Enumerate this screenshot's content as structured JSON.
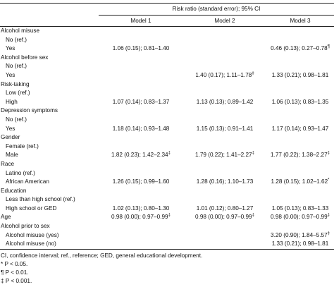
{
  "header": {
    "span_title": "Risk ratio (standard error); 95% CI",
    "columns": [
      "Model 1",
      "Model 2",
      "Model 3"
    ]
  },
  "table": {
    "rows": [
      {
        "label": "Alcohol misuse",
        "indent": false,
        "cells": [
          null,
          null,
          null
        ]
      },
      {
        "label": "No (ref.)",
        "indent": true,
        "cells": [
          null,
          null,
          null
        ]
      },
      {
        "label": "Yes",
        "indent": true,
        "cells": [
          {
            "text": "1.06 (0.15); 0.81–1.40"
          },
          null,
          {
            "text": "0.46 (0.13); 0.27–0.78",
            "sig": "¶"
          }
        ]
      },
      {
        "label": "Alcohol before sex",
        "indent": false,
        "cells": [
          null,
          null,
          null
        ]
      },
      {
        "label": "No (ref.)",
        "indent": true,
        "cells": [
          null,
          null,
          null
        ]
      },
      {
        "label": "Yes",
        "indent": true,
        "cells": [
          null,
          {
            "text": "1.40 (0.17); 1.11–1.78",
            "sig": "‡"
          },
          {
            "text": "1.33 (0.21); 0.98–1.81"
          }
        ]
      },
      {
        "label": "Risk-taking",
        "indent": false,
        "cells": [
          null,
          null,
          null
        ]
      },
      {
        "label": "Low (ref.)",
        "indent": true,
        "cells": [
          null,
          null,
          null
        ]
      },
      {
        "label": "High",
        "indent": true,
        "cells": [
          {
            "text": "1.07 (0.14); 0.83–1.37"
          },
          {
            "text": "1.13 (0.13); 0.89–1.42"
          },
          {
            "text": "1.06 (0.13); 0.83–1.35"
          }
        ]
      },
      {
        "label": "Depression symptoms",
        "indent": false,
        "cells": [
          null,
          null,
          null
        ]
      },
      {
        "label": "No (ref.)",
        "indent": true,
        "cells": [
          null,
          null,
          null
        ]
      },
      {
        "label": "Yes",
        "indent": true,
        "cells": [
          {
            "text": "1.18 (0.14); 0.93–1.48"
          },
          {
            "text": "1.15 (0.13); 0.91–1.41"
          },
          {
            "text": "1.17 (0.14); 0.93–1.47"
          }
        ]
      },
      {
        "label": "Gender",
        "indent": false,
        "cells": [
          null,
          null,
          null
        ]
      },
      {
        "label": "Female (ref.)",
        "indent": true,
        "cells": [
          null,
          null,
          null
        ]
      },
      {
        "label": "Male",
        "indent": true,
        "cells": [
          {
            "text": "1.82 (0.23); 1.42–2.34",
            "sig": "‡"
          },
          {
            "text": "1.79 (0.22); 1.41–2.27",
            "sig": "‡"
          },
          {
            "text": "1.77 (0.22); 1.38–2.27",
            "sig": "‡"
          }
        ]
      },
      {
        "label": "Race",
        "indent": false,
        "cells": [
          null,
          null,
          null
        ]
      },
      {
        "label": "Latino (ref.)",
        "indent": true,
        "cells": [
          null,
          null,
          null
        ]
      },
      {
        "label": "African American",
        "indent": true,
        "cells": [
          {
            "text": "1.26 (0.15); 0.99–1.60"
          },
          {
            "text": "1.28 (0.16); 1.10–1.73"
          },
          {
            "text": "1.28 (0.15); 1.02–1.62",
            "sig": "*"
          }
        ]
      },
      {
        "label": "Education",
        "indent": false,
        "cells": [
          null,
          null,
          null
        ]
      },
      {
        "label": "Less than high school (ref.)",
        "indent": true,
        "cells": [
          null,
          null,
          null
        ]
      },
      {
        "label": "High school or GED",
        "indent": true,
        "cells": [
          {
            "text": "1.02 (0.13); 0.80–1.30"
          },
          {
            "text": "1.01 (0.12); 0.80–1.27"
          },
          {
            "text": "1.05 (0.13); 0.83–1.33"
          }
        ]
      },
      {
        "label": "Age",
        "indent": false,
        "cells": [
          {
            "text": "0.98 (0.00); 0.97–0.99",
            "sig": "‡"
          },
          {
            "text": "0.98 (0.00); 0.97–0.99",
            "sig": "‡"
          },
          {
            "text": "0.98 (0.00); 0.97–0.99",
            "sig": "‡"
          }
        ]
      },
      {
        "label": "Alcohol prior to sex",
        "indent": false,
        "cells": [
          null,
          null,
          null
        ]
      },
      {
        "label": "Alcohol misuse (yes)",
        "indent": true,
        "cells": [
          null,
          null,
          {
            "text": "3.20 (0.90); 1.84–5.57",
            "sig": "‡"
          }
        ]
      },
      {
        "label": "Alcohol misuse (no)",
        "indent": true,
        "cells": [
          null,
          null,
          {
            "text": "1.33 (0.21); 0.98–1.81"
          }
        ]
      }
    ]
  },
  "footnotes": [
    "CI, confidence interval; ref., reference; GED, general educational development.",
    "* P < 0.05.",
    "¶ P < 0.01.",
    "‡ P < 0.001."
  ]
}
